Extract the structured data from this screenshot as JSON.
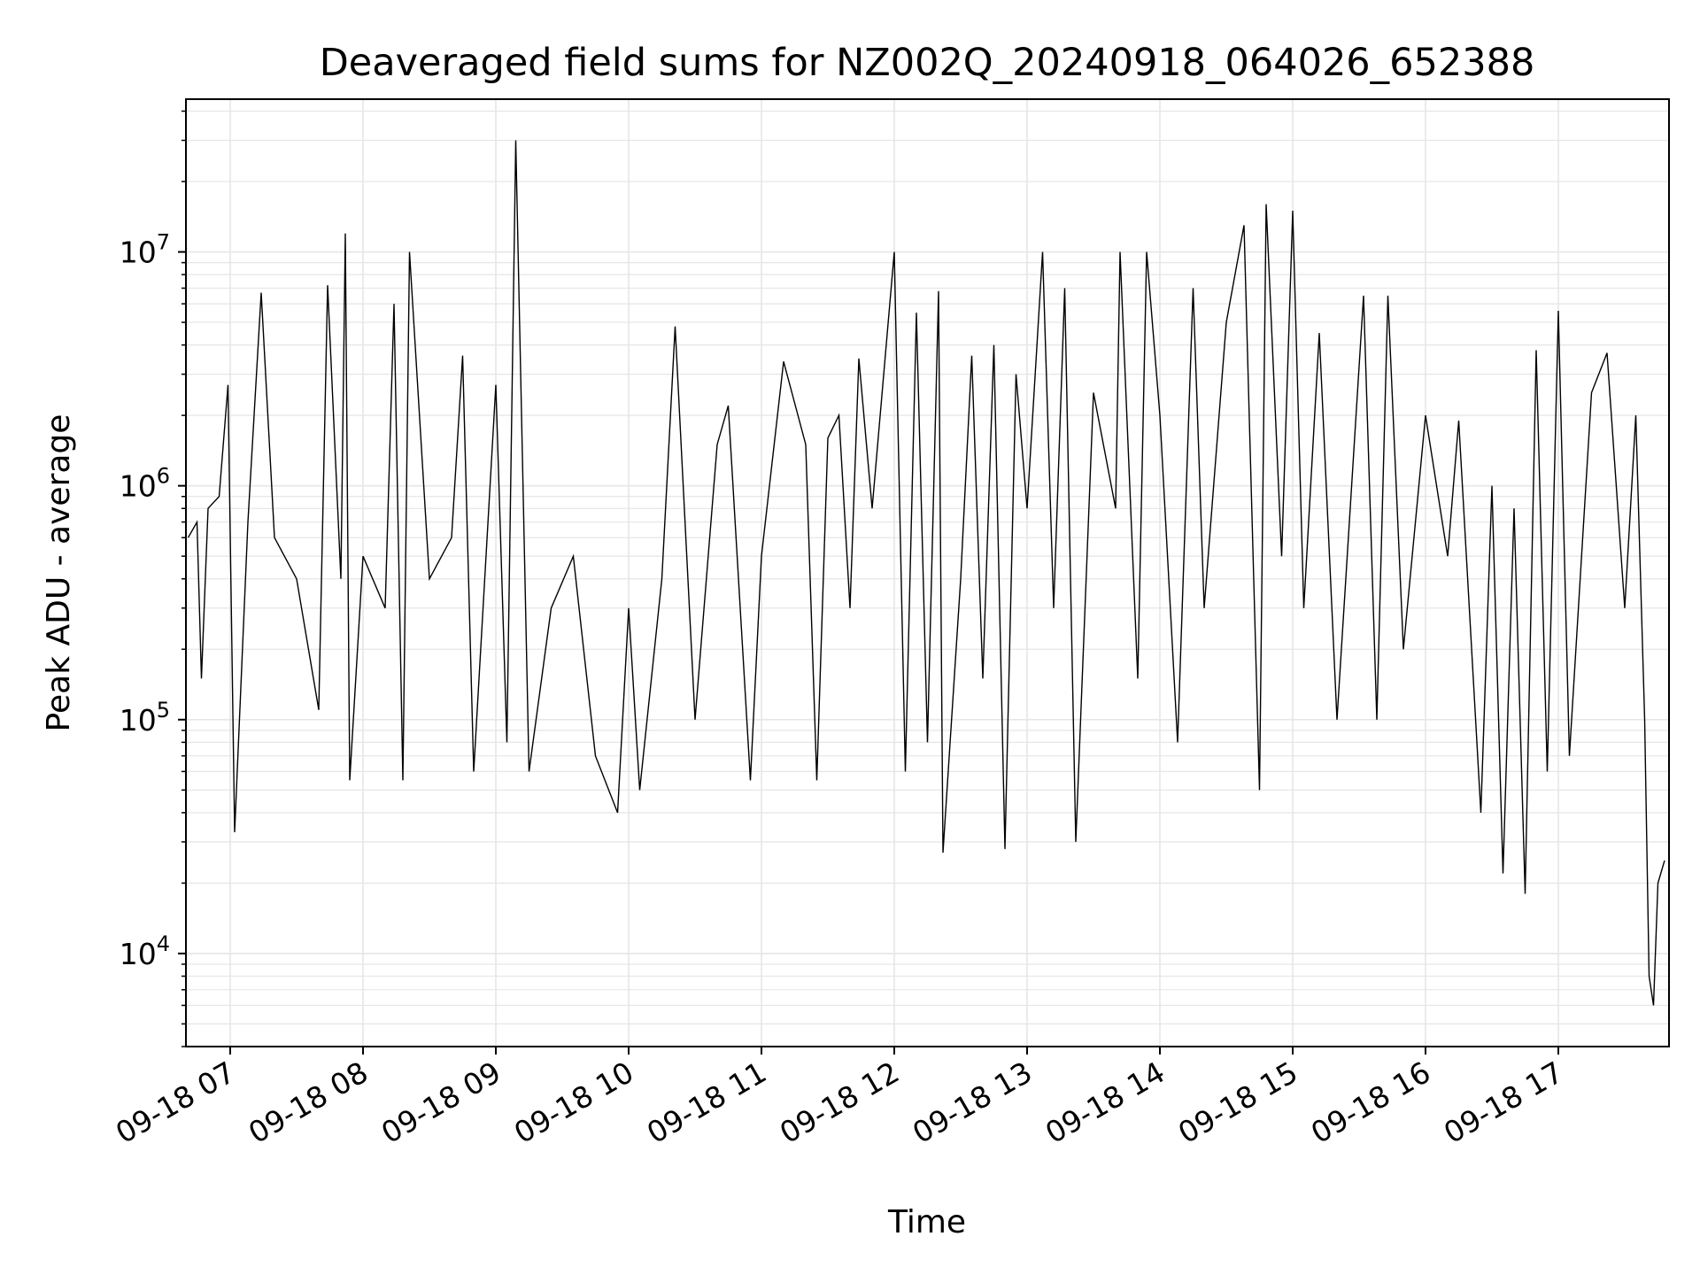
{
  "chart_data": {
    "type": "line",
    "title": "Deaveraged field sums for NZ002Q_20240918_064026_652388",
    "xlabel": "Time",
    "ylabel": "Peak ADU - average",
    "yscale": "log",
    "ylim": [
      4000,
      45000000
    ],
    "xlim": [
      "09-18 06:40",
      "09-18 17:50"
    ],
    "grid": true,
    "line_color": "#000000",
    "grid_color": "#e6e6e6",
    "x_ticks": [
      "09-18 07",
      "09-18 08",
      "09-18 09",
      "09-18 10",
      "09-18 11",
      "09-18 12",
      "09-18 13",
      "09-18 14",
      "09-18 15",
      "09-18 16",
      "09-18 17"
    ],
    "y_ticks": [
      {
        "value": 10000,
        "base": "10",
        "exp": "4"
      },
      {
        "value": 100000,
        "base": "10",
        "exp": "5"
      },
      {
        "value": 1000000,
        "base": "10",
        "exp": "6"
      },
      {
        "value": 10000000,
        "base": "10",
        "exp": "7"
      }
    ],
    "series": [
      {
        "points": [
          [
            "09-18 06:41",
            600000
          ],
          [
            "09-18 06:45",
            700000
          ],
          [
            "09-18 06:47",
            150000
          ],
          [
            "09-18 06:50",
            800000
          ],
          [
            "09-18 06:55",
            900000
          ],
          [
            "09-18 06:59",
            2700000
          ],
          [
            "09-18 07:02",
            33000
          ],
          [
            "09-18 07:08",
            700000
          ],
          [
            "09-18 07:14",
            6700000
          ],
          [
            "09-18 07:20",
            600000
          ],
          [
            "09-18 07:30",
            400000
          ],
          [
            "09-18 07:40",
            110000
          ],
          [
            "09-18 07:44",
            7200000
          ],
          [
            "09-18 07:50",
            400000
          ],
          [
            "09-18 07:52",
            12000000
          ],
          [
            "09-18 07:54",
            55000
          ],
          [
            "09-18 08:00",
            500000
          ],
          [
            "09-18 08:10",
            300000
          ],
          [
            "09-18 08:14",
            6000000
          ],
          [
            "09-18 08:18",
            55000
          ],
          [
            "09-18 08:21",
            10000000
          ],
          [
            "09-18 08:30",
            400000
          ],
          [
            "09-18 08:40",
            600000
          ],
          [
            "09-18 08:45",
            3600000
          ],
          [
            "09-18 08:50",
            60000
          ],
          [
            "09-18 09:00",
            2700000
          ],
          [
            "09-18 09:05",
            80000
          ],
          [
            "09-18 09:09",
            30000000
          ],
          [
            "09-18 09:15",
            60000
          ],
          [
            "09-18 09:25",
            300000
          ],
          [
            "09-18 09:35",
            500000
          ],
          [
            "09-18 09:45",
            70000
          ],
          [
            "09-18 09:55",
            40000
          ],
          [
            "09-18 10:00",
            300000
          ],
          [
            "09-18 10:05",
            50000
          ],
          [
            "09-18 10:15",
            400000
          ],
          [
            "09-18 10:21",
            4800000
          ],
          [
            "09-18 10:30",
            100000
          ],
          [
            "09-18 10:40",
            1500000
          ],
          [
            "09-18 10:45",
            2200000
          ],
          [
            "09-18 10:55",
            55000
          ],
          [
            "09-18 11:00",
            500000
          ],
          [
            "09-18 11:10",
            3400000
          ],
          [
            "09-18 11:20",
            1500000
          ],
          [
            "09-18 11:25",
            55000
          ],
          [
            "09-18 11:30",
            1600000
          ],
          [
            "09-18 11:35",
            2000000
          ],
          [
            "09-18 11:40",
            300000
          ],
          [
            "09-18 11:44",
            3500000
          ],
          [
            "09-18 11:50",
            800000
          ],
          [
            "09-18 12:00",
            10000000
          ],
          [
            "09-18 12:05",
            60000
          ],
          [
            "09-18 12:10",
            5500000
          ],
          [
            "09-18 12:15",
            80000
          ],
          [
            "09-18 12:20",
            6800000
          ],
          [
            "09-18 12:22",
            27000
          ],
          [
            "09-18 12:30",
            400000
          ],
          [
            "09-18 12:35",
            3600000
          ],
          [
            "09-18 12:40",
            150000
          ],
          [
            "09-18 12:45",
            4000000
          ],
          [
            "09-18 12:50",
            28000
          ],
          [
            "09-18 12:55",
            3000000
          ],
          [
            "09-18 13:00",
            800000
          ],
          [
            "09-18 13:07",
            10000000
          ],
          [
            "09-18 13:12",
            300000
          ],
          [
            "09-18 13:17",
            7000000
          ],
          [
            "09-18 13:22",
            30000
          ],
          [
            "09-18 13:30",
            2500000
          ],
          [
            "09-18 13:40",
            800000
          ],
          [
            "09-18 13:42",
            10000000
          ],
          [
            "09-18 13:50",
            150000
          ],
          [
            "09-18 13:54",
            10000000
          ],
          [
            "09-18 14:00",
            2000000
          ],
          [
            "09-18 14:08",
            80000
          ],
          [
            "09-18 14:15",
            7000000
          ],
          [
            "09-18 14:20",
            300000
          ],
          [
            "09-18 14:30",
            5000000
          ],
          [
            "09-18 14:38",
            13000000
          ],
          [
            "09-18 14:45",
            50000
          ],
          [
            "09-18 14:48",
            16000000
          ],
          [
            "09-18 14:55",
            500000
          ],
          [
            "09-18 15:00",
            15000000
          ],
          [
            "09-18 15:05",
            300000
          ],
          [
            "09-18 15:12",
            4500000
          ],
          [
            "09-18 15:20",
            100000
          ],
          [
            "09-18 15:32",
            6500000
          ],
          [
            "09-18 15:38",
            100000
          ],
          [
            "09-18 15:43",
            6500000
          ],
          [
            "09-18 15:50",
            200000
          ],
          [
            "09-18 16:00",
            2000000
          ],
          [
            "09-18 16:10",
            500000
          ],
          [
            "09-18 16:15",
            1900000
          ],
          [
            "09-18 16:25",
            40000
          ],
          [
            "09-18 16:30",
            1000000
          ],
          [
            "09-18 16:35",
            22000
          ],
          [
            "09-18 16:40",
            800000
          ],
          [
            "09-18 16:45",
            18000
          ],
          [
            "09-18 16:50",
            3800000
          ],
          [
            "09-18 16:55",
            60000
          ],
          [
            "09-18 17:00",
            5600000
          ],
          [
            "09-18 17:05",
            70000
          ],
          [
            "09-18 17:15",
            2500000
          ],
          [
            "09-18 17:22",
            3700000
          ],
          [
            "09-18 17:30",
            300000
          ],
          [
            "09-18 17:35",
            2000000
          ],
          [
            "09-18 17:39",
            100000
          ],
          [
            "09-18 17:41",
            8000
          ],
          [
            "09-18 17:43",
            6000
          ],
          [
            "09-18 17:45",
            20000
          ],
          [
            "09-18 17:48",
            25000
          ]
        ]
      }
    ]
  }
}
